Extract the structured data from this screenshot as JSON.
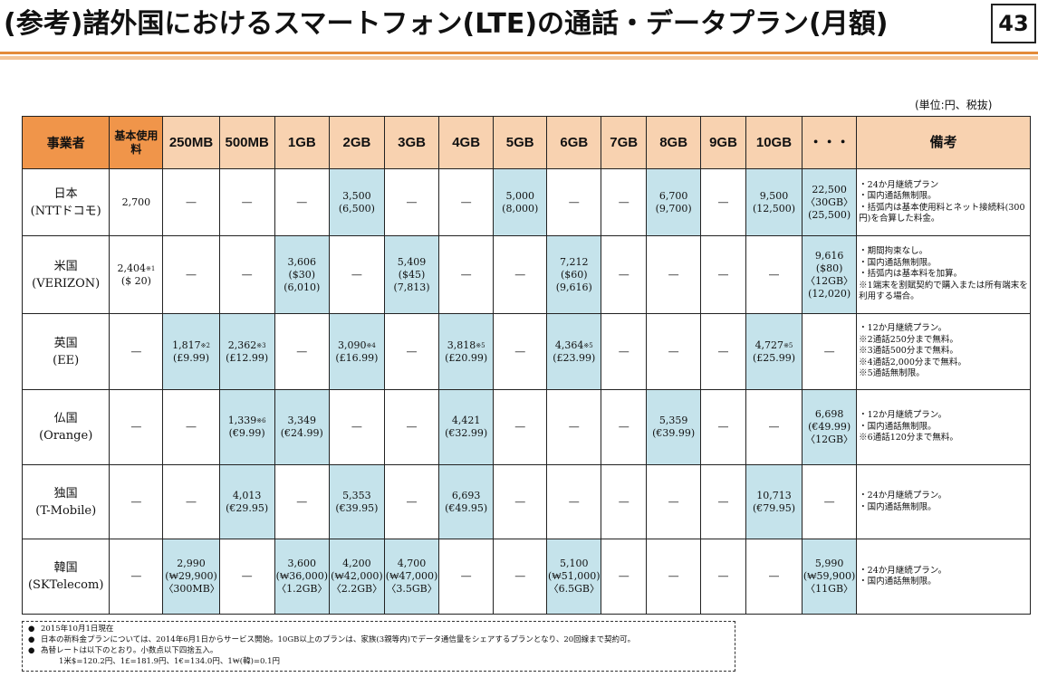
{
  "title": "(参考)諸外国におけるスマートフォン(LTE)の通話・データプラン(月額)",
  "page_number": "43",
  "unit_note": "(単位:円、税抜)",
  "table": {
    "headers": [
      "事業者",
      "基本\n使用料",
      "250\nMB",
      "500\nMB",
      "1GB",
      "2GB",
      "3GB",
      "4GB",
      "5GB",
      "6GB",
      "7GB",
      "8GB",
      "9GB",
      "10GB",
      "・・・",
      "備考"
    ],
    "rows": [
      {
        "operator": [
          "日本",
          "(NTTドコモ)"
        ],
        "cells": [
          {
            "t": "2,700"
          },
          {
            "t": "―"
          },
          {
            "t": "―"
          },
          {
            "t": "―"
          },
          {
            "t": "3,500\n(6,500)",
            "hl": true
          },
          {
            "t": "―"
          },
          {
            "t": "―"
          },
          {
            "t": "5,000\n(8,000)",
            "hl": true
          },
          {
            "t": "―"
          },
          {
            "t": "―"
          },
          {
            "t": "6,700\n(9,700)",
            "hl": true
          },
          {
            "t": "―"
          },
          {
            "t": "9,500\n(12,500)",
            "hl": true
          },
          {
            "t": "22,500\n〈30GB〉\n(25,500)",
            "hl": true
          }
        ],
        "notes": [
          "・24か月継続プラン",
          "・国内通話無制限。",
          "・括弧内は基本使用料とネット接続料(300円)を合算した料金。"
        ]
      },
      {
        "operator": [
          "米国",
          "(VERIZON)"
        ],
        "cells": [
          {
            "t": "2,404\n($ 20)",
            "sup": "※1"
          },
          {
            "t": "―"
          },
          {
            "t": "―"
          },
          {
            "t": "3,606\n($30)\n(6,010)",
            "hl": true
          },
          {
            "t": "―"
          },
          {
            "t": "5,409\n($45)\n(7,813)",
            "hl": true
          },
          {
            "t": "―"
          },
          {
            "t": "―"
          },
          {
            "t": "7,212\n($60)\n(9,616)",
            "hl": true
          },
          {
            "t": "―"
          },
          {
            "t": "―"
          },
          {
            "t": "―"
          },
          {
            "t": "―"
          },
          {
            "t": "9,616\n($80)\n〈12GB〉\n(12,020)",
            "hl": true
          }
        ],
        "notes": [
          "・期間拘束なし。",
          "・国内通話無制限。",
          "・括弧内は基本料を加算。",
          "※1端末を割賦契約で購入または所有端末を利用する場合。"
        ]
      },
      {
        "operator": [
          "英国",
          "(EE)"
        ],
        "cells": [
          {
            "t": "―"
          },
          {
            "t": "1,817\n(£9.99)",
            "sup": "※2",
            "hl": true
          },
          {
            "t": "2,362\n(£12.99)",
            "sup": "※3",
            "hl": true
          },
          {
            "t": "―"
          },
          {
            "t": "3,090\n(£16.99)",
            "sup": "※4",
            "hl": true
          },
          {
            "t": "―"
          },
          {
            "t": "3,818\n(£20.99)",
            "sup": "※5",
            "hl": true
          },
          {
            "t": "―"
          },
          {
            "t": "4,364\n(£23.99)",
            "sup": "※5",
            "hl": true
          },
          {
            "t": "―"
          },
          {
            "t": "―"
          },
          {
            "t": "―"
          },
          {
            "t": "4,727\n(£25.99)",
            "sup": "※5",
            "hl": true
          },
          {
            "t": "―"
          }
        ],
        "notes": [
          "・12か月継続プラン。",
          "※2通話250分まで無料。",
          "※3通話500分まで無料。",
          "※4通話2,000分まで無料。",
          "※5通話無制限。"
        ]
      },
      {
        "operator": [
          "仏国",
          "(Orange)"
        ],
        "cells": [
          {
            "t": "―"
          },
          {
            "t": "―"
          },
          {
            "t": "1,339\n(€9.99)",
            "sup": "※6",
            "hl": true
          },
          {
            "t": "3,349\n(€24.99)",
            "hl": true
          },
          {
            "t": "―"
          },
          {
            "t": "―"
          },
          {
            "t": "4,421\n(€32.99)",
            "hl": true
          },
          {
            "t": "―"
          },
          {
            "t": "―"
          },
          {
            "t": "―"
          },
          {
            "t": "5,359\n(€39.99)",
            "hl": true
          },
          {
            "t": "―"
          },
          {
            "t": "―"
          },
          {
            "t": "6,698\n(€49.99)\n〈12GB〉",
            "hl": true
          }
        ],
        "notes": [
          "・12か月継続プラン。",
          "・国内通話無制限。",
          "※6通話120分まで無料。"
        ]
      },
      {
        "operator": [
          "独国",
          "(T-Mobile)"
        ],
        "cells": [
          {
            "t": "―"
          },
          {
            "t": "―"
          },
          {
            "t": "4,013\n(€29.95)",
            "hl": true
          },
          {
            "t": "―"
          },
          {
            "t": "5,353\n(€39.95)",
            "hl": true
          },
          {
            "t": "―"
          },
          {
            "t": "6,693\n(€49.95)",
            "hl": true
          },
          {
            "t": "―"
          },
          {
            "t": "―"
          },
          {
            "t": "―"
          },
          {
            "t": "―"
          },
          {
            "t": "―"
          },
          {
            "t": "10,713\n(€79.95)",
            "hl": true
          },
          {
            "t": "―"
          }
        ],
        "notes": [
          "・24か月継続プラン。",
          "・国内通話無制限。"
        ]
      },
      {
        "operator": [
          "韓国",
          "(SKTelecom)"
        ],
        "cells": [
          {
            "t": "―"
          },
          {
            "t": "2,990\n(₩29,900)\n〈300MB〉",
            "hl": true
          },
          {
            "t": "―"
          },
          {
            "t": "3,600\n(₩36,000)\n〈1.2GB〉",
            "hl": true
          },
          {
            "t": "4,200\n(₩42,000)\n〈2.2GB〉",
            "hl": true
          },
          {
            "t": "4,700\n(₩47,000)\n〈3.5GB〉",
            "hl": true
          },
          {
            "t": "―"
          },
          {
            "t": "―"
          },
          {
            "t": "5,100\n(₩51,000)\n〈6.5GB〉",
            "hl": true
          },
          {
            "t": "―"
          },
          {
            "t": "―"
          },
          {
            "t": "―"
          },
          {
            "t": "―"
          },
          {
            "t": "5,990\n(₩59,900)\n〈11GB〉",
            "hl": true
          }
        ],
        "notes": [
          "・24か月継続プラン。",
          "・国内通話無制限。"
        ]
      }
    ]
  },
  "footnotes": [
    "2015年10月1日現在",
    "日本の新料金プランについては、2014年6月1日からサービス開始。10GB以上のプランは、家族(3親等内)でデータ通信量をシェアするプランとなり、20回線まで契約可。",
    "為替レートは以下のとおり。小数点以下四捨五入。"
  ],
  "exchange_rates": "1米$=120.2円、1£=181.9円、1€=134.0円、1₩(韓)=0.1円"
}
